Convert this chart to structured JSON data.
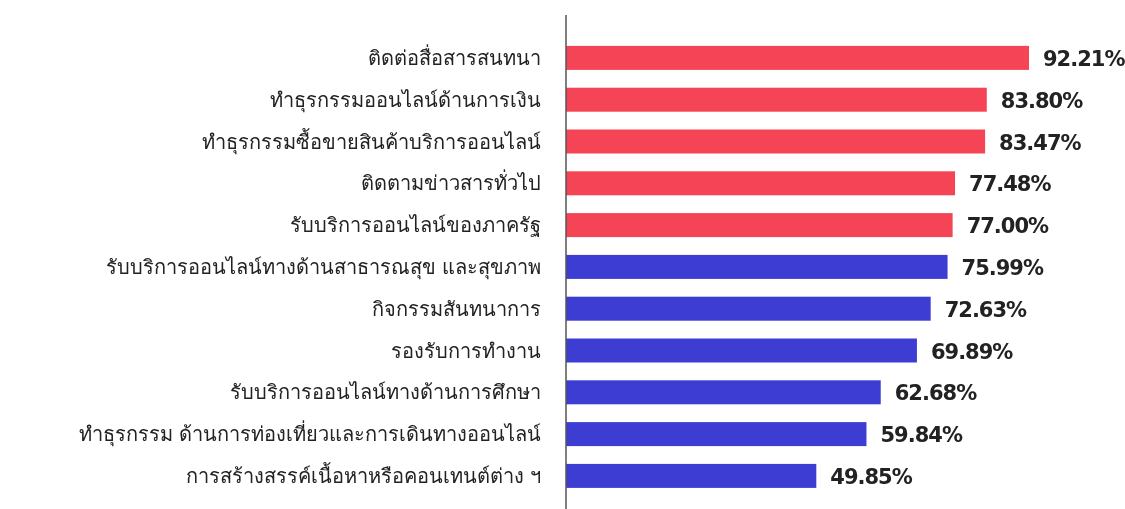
{
  "chart_data": {
    "type": "bar",
    "orientation": "horizontal",
    "categories": [
      "ติดต่อสื่อสารสนทนา",
      "ทำธุรกรรมออนไลน์ด้านการเงิน",
      "ทำธุรกรรมซื้อขายสินค้าบริการออนไลน์",
      "ติดตามข่าวสารทั่วไป",
      "รับบริการออนไลน์ของภาครัฐ",
      "รับบริการออนไลน์ทางด้านสาธารณสุข และสุขภาพ",
      "กิจกรรมสันทนาการ",
      "รองรับการทำงาน",
      "รับบริการออนไลน์ทางด้านการศึกษา",
      "ทำธุรกรรม ด้านการท่องเที่ยวและการเดินทางออนไลน์",
      "การสร้างสรรค์เนื้อหาหรือคอนเทนต์ต่าง ฯ"
    ],
    "values": [
      92.21,
      83.8,
      83.47,
      77.48,
      77.0,
      75.99,
      72.63,
      69.89,
      62.68,
      59.84,
      49.85
    ],
    "value_labels": [
      "92.21%",
      "83.80%",
      "83.47%",
      "77.48%",
      "77.00%",
      "75.99%",
      "72.63%",
      "69.89%",
      "62.68%",
      "59.84%",
      "49.85%"
    ],
    "colors": [
      "#f54456",
      "#f54456",
      "#f54456",
      "#f54456",
      "#f54456",
      "#3d3dd4",
      "#3d3dd4",
      "#3d3dd4",
      "#3d3dd4",
      "#3d3dd4",
      "#3d3dd4"
    ]
  }
}
